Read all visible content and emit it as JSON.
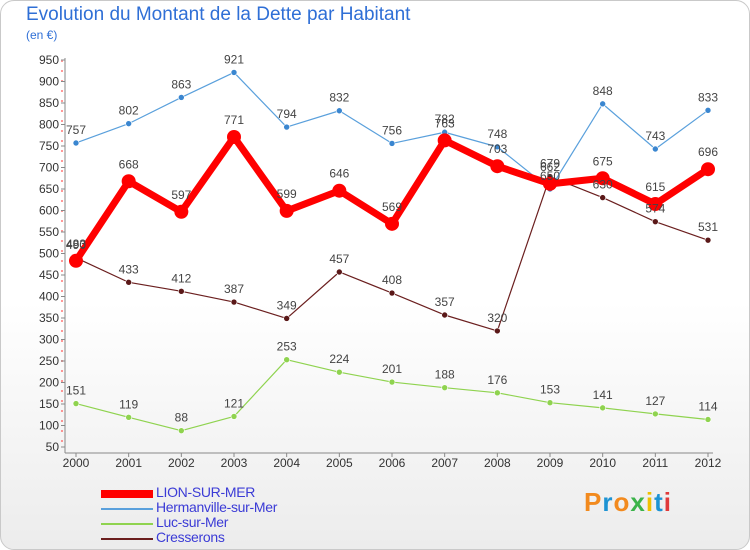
{
  "title": "Evolution du Montant de la Dette par Habitant",
  "subtitle": "(en €)",
  "logo": {
    "letters": [
      "P",
      "r",
      "o",
      "x",
      "i",
      "t",
      "i"
    ],
    "colors": [
      "#f28a1e",
      "#1d93d3",
      "#f28a1e",
      "#3bb34a",
      "#f0c000",
      "#1d93d3",
      "#e03a3a"
    ]
  },
  "chart_data": {
    "type": "line",
    "title": "Evolution du Montant de la Dette par Habitant",
    "ylabel": "(en €)",
    "x": [
      "2000",
      "2001",
      "2002",
      "2003",
      "2004",
      "2005",
      "2006",
      "2007",
      "2008",
      "2009",
      "2010",
      "2011",
      "2012"
    ],
    "ylim": [
      50,
      950
    ],
    "yticks": [
      50,
      100,
      150,
      200,
      250,
      300,
      350,
      400,
      450,
      500,
      550,
      600,
      650,
      700,
      750,
      800,
      850,
      900,
      950
    ],
    "grid": false,
    "legend": "bottom-left",
    "series": [
      {
        "name": "LION-SUR-MER",
        "color": "#ff0000",
        "values": [
          483,
          668,
          597,
          771,
          599,
          646,
          569,
          763,
          703,
          662,
          675,
          615,
          696
        ],
        "labels": [
          "483",
          "668",
          "597",
          "771",
          "599",
          "646",
          "569",
          "763",
          "703",
          "662",
          "675",
          "615",
          "696"
        ]
      },
      {
        "name": "Hermanville-sur-Mer",
        "color": "#5aa0dc",
        "values": [
          757,
          802,
          863,
          921,
          794,
          832,
          756,
          782,
          748,
          650,
          848,
          743,
          833
        ],
        "labels": [
          "757",
          "802",
          "863",
          "921",
          "794",
          "832",
          "756",
          "782",
          "748",
          "650",
          "848",
          "743",
          "833"
        ]
      },
      {
        "name": "Luc-sur-Mer",
        "color": "#8fd34f",
        "values": [
          151,
          119,
          88,
          121,
          253,
          224,
          201,
          188,
          176,
          153,
          141,
          127,
          114
        ],
        "labels": [
          "151",
          "119",
          "88",
          "121",
          "253",
          "224",
          "201",
          "188",
          "176",
          "153",
          "141",
          "127",
          "114"
        ]
      },
      {
        "name": "Cresserons",
        "color": "#6b1f1f",
        "values": [
          490,
          433,
          412,
          387,
          349,
          457,
          408,
          357,
          320,
          679,
          630,
          574,
          531
        ],
        "labels": [
          "490",
          "433",
          "412",
          "387",
          "349",
          "457",
          "408",
          "357",
          "320",
          "679",
          "630",
          "574",
          "531"
        ]
      }
    ]
  }
}
